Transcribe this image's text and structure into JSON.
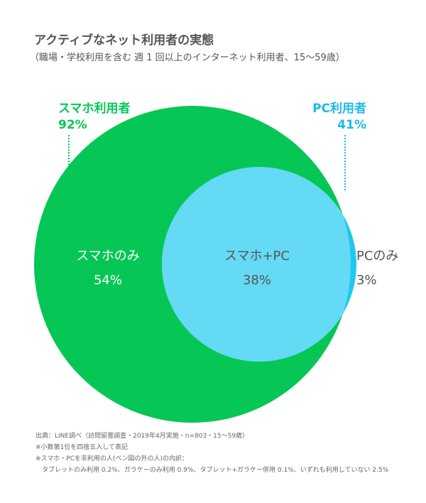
{
  "header": {
    "title": "アクティブなネット利用者の実態",
    "subtitle": "（職場・学校利用を含む 週 1 回以上のインターネット利用者、15〜59歳）"
  },
  "colors": {
    "smartphone": "#06c755",
    "pc": "#1ec8f0",
    "overlap": "#64daf5",
    "pc_text": "#1cb9e8",
    "inner_text": "#ffffff",
    "overlap_text": "#555555"
  },
  "venn": {
    "smartphone_users": {
      "label": "スマホ利用者",
      "value": "92%"
    },
    "pc_users": {
      "label": "PC利用者",
      "value": "41%"
    },
    "smartphone_only": {
      "label": "スマホのみ",
      "value": "54%"
    },
    "both": {
      "label": "スマホ+PC",
      "value": "38%"
    },
    "pc_only": {
      "label": "PCのみ",
      "value": "3%"
    }
  },
  "notes": [
    "出典：LINE調べ（訪問留置調査・2019年4月実施・n=803・15〜59歳）",
    "※小数第1位を四捨五入して表記",
    "※スマホ・PCを非利用の人(ベン図の外の人)の内訳：",
    "　タブレットのみ利用 0.2%、ガラケーのみ利用 0.9%、タブレット+ガラケー併用 0.1%、いずれも利用していない 2.5%"
  ]
}
